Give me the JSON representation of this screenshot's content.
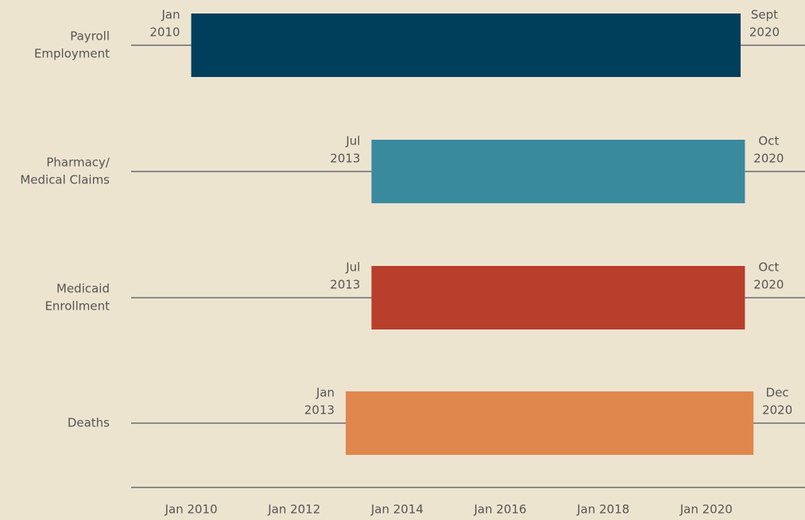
{
  "chart_data": {
    "type": "timeline",
    "categories": [
      [
        "Payroll",
        "Employment"
      ],
      [
        "Pharmacy/",
        "Medical Claims"
      ],
      [
        "Medicaid",
        "Enrollment"
      ],
      [
        "Deaths"
      ]
    ],
    "start": [
      "2010-01",
      "2013-07",
      "2013-07",
      "2013-01"
    ],
    "end": [
      "2020-09",
      "2020-10",
      "2020-10",
      "2020-12"
    ],
    "start_labels": [
      [
        "Jan",
        "2010"
      ],
      [
        "Jul",
        "2013"
      ],
      [
        "Jul",
        "2013"
      ],
      [
        "Jan",
        "2013"
      ]
    ],
    "end_labels": [
      [
        "Sept",
        "2020"
      ],
      [
        "Oct",
        "2020"
      ],
      [
        "Oct",
        "2020"
      ],
      [
        "Dec",
        "2020"
      ]
    ],
    "colors": [
      "#003f5c",
      "#3a8a9e",
      "#b83f2b",
      "#e0874e"
    ],
    "xlim": [
      "2008-11",
      "2021-12"
    ],
    "xticks": [
      {
        "value": "2010-01",
        "label": "Jan 2010"
      },
      {
        "value": "2012-01",
        "label": "Jan 2012"
      },
      {
        "value": "2014-01",
        "label": "Jan 2014"
      },
      {
        "value": "2016-01",
        "label": "Jan 2016"
      },
      {
        "value": "2018-01",
        "label": "Jan 2018"
      },
      {
        "value": "2020-01",
        "label": "Jan 2020"
      }
    ]
  }
}
